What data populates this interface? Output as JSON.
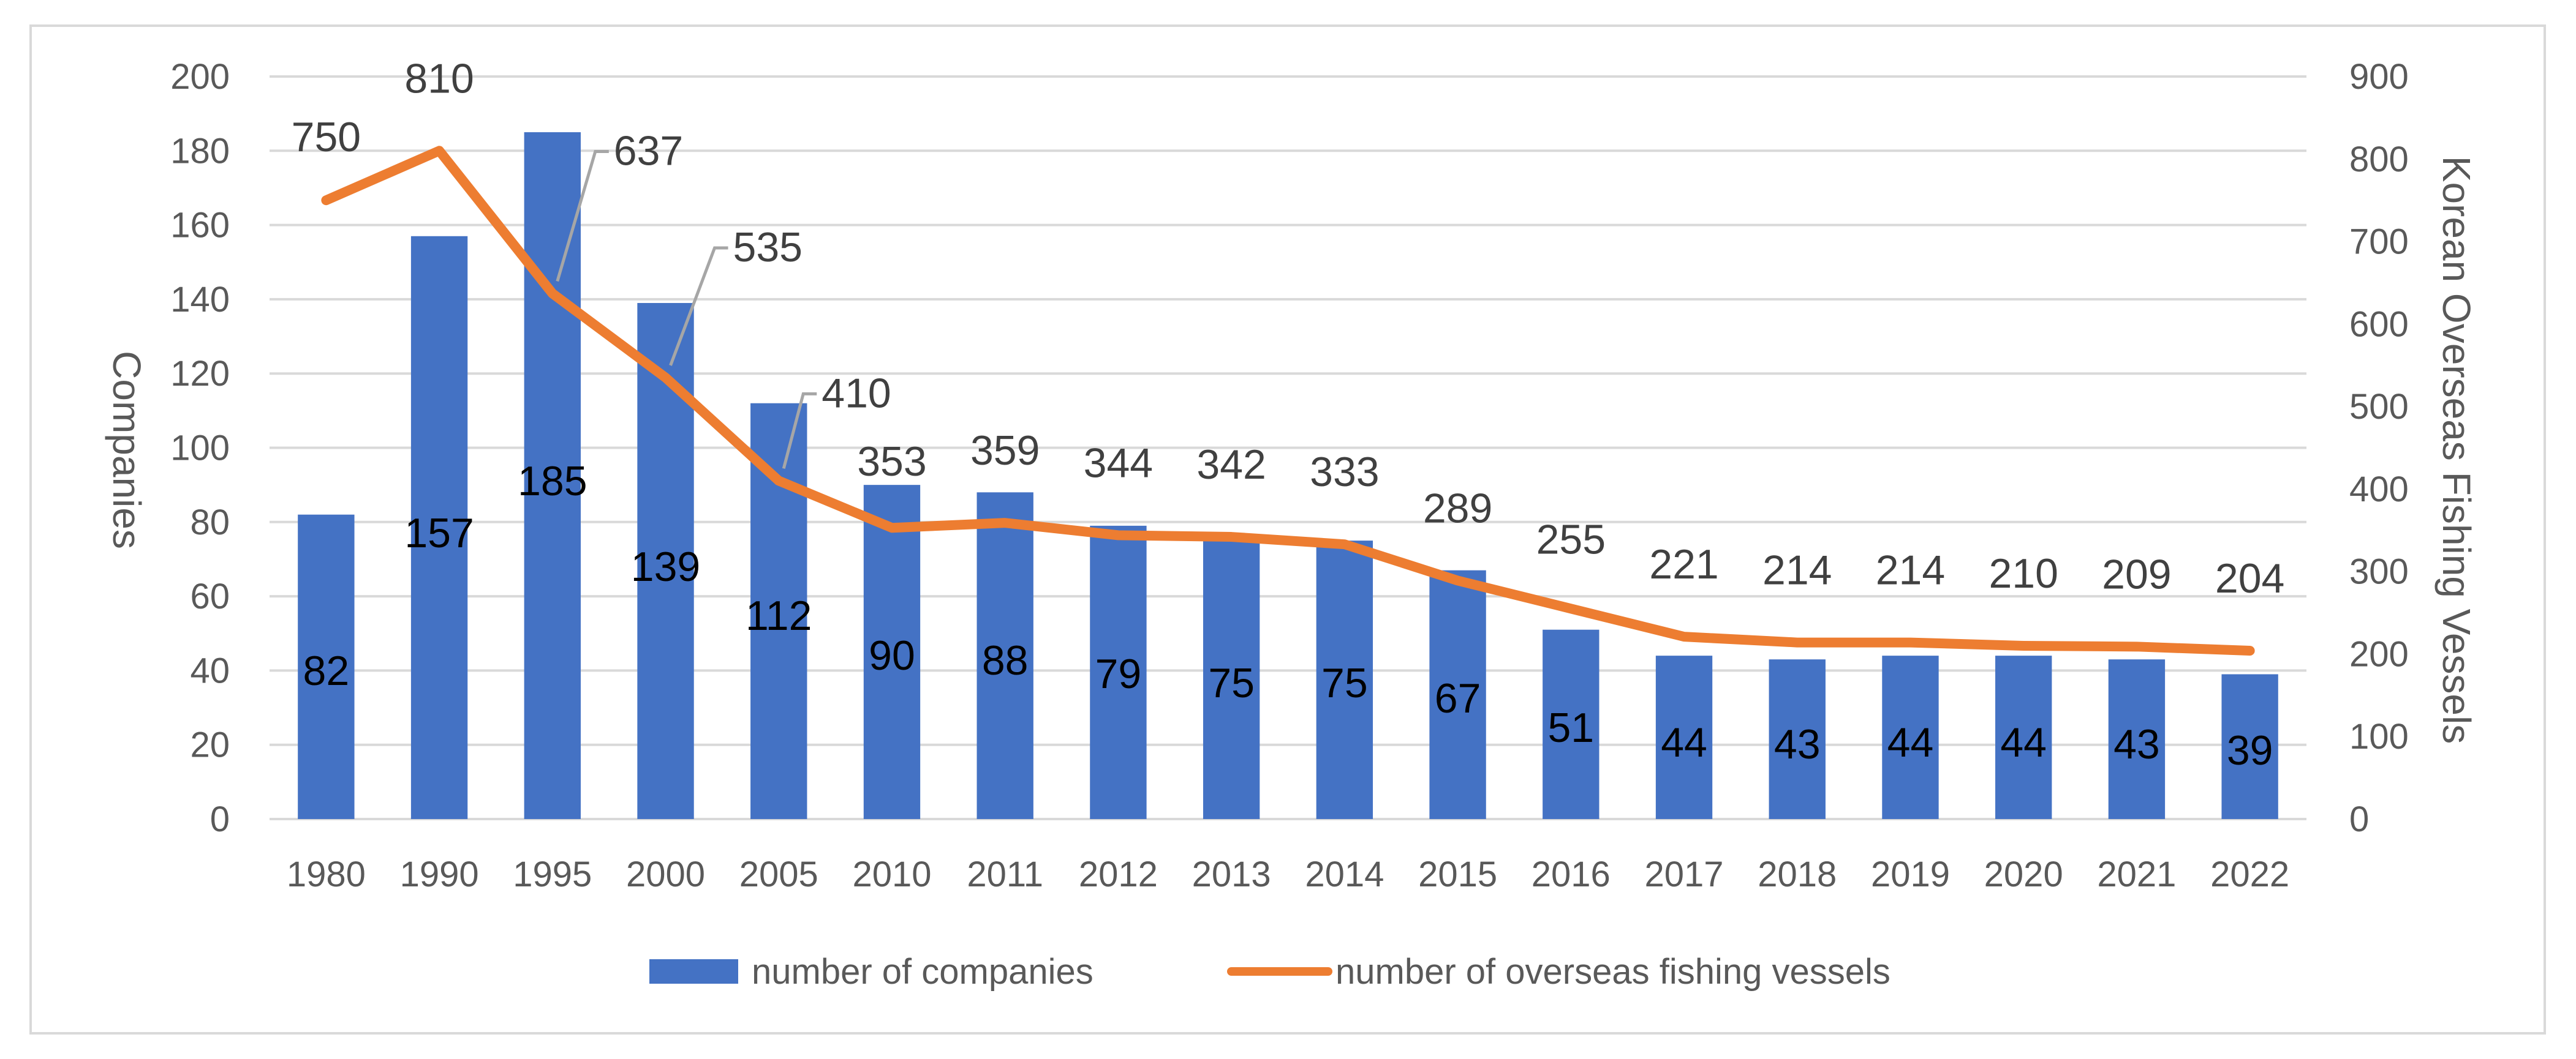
{
  "chart_data": {
    "type": "bar+line",
    "categories": [
      "1980",
      "1990",
      "1995",
      "2000",
      "2005",
      "2010",
      "2011",
      "2012",
      "2013",
      "2014",
      "2015",
      "2016",
      "2017",
      "2018",
      "2019",
      "2020",
      "2021",
      "2022"
    ],
    "series": [
      {
        "name": "number of companies",
        "type": "bar",
        "axis": "left",
        "color": "#4472C4",
        "values": [
          82,
          157,
          185,
          139,
          112,
          90,
          88,
          79,
          75,
          75,
          67,
          51,
          44,
          43,
          44,
          44,
          43,
          39
        ],
        "labels": [
          "82",
          "157",
          "185",
          "139",
          "112",
          "90",
          "88",
          "79",
          "75",
          "75",
          "67",
          "51",
          "44",
          "43",
          "44",
          "44",
          "43",
          "39"
        ]
      },
      {
        "name": "number of overseas fishing vessels",
        "type": "line",
        "axis": "right",
        "color": "#ED7D31",
        "values": [
          750,
          810,
          637,
          535,
          410,
          353,
          359,
          344,
          342,
          333,
          289,
          255,
          221,
          214,
          214,
          210,
          209,
          204
        ],
        "labels": [
          "750",
          "810",
          "637",
          "535",
          "410",
          "353",
          "359",
          "344",
          "342",
          "333",
          "289",
          "255",
          "221",
          "214",
          "214",
          "210",
          "209",
          "204"
        ]
      }
    ],
    "y_left": {
      "label": "Companies",
      "min": 0,
      "max": 200,
      "ticks": [
        "0",
        "20",
        "40",
        "60",
        "80",
        "100",
        "120",
        "140",
        "160",
        "180",
        "200"
      ]
    },
    "y_right": {
      "label": "Korean Overseas Fishing Vessels",
      "min": 0,
      "max": 900,
      "ticks": [
        "0",
        "100",
        "200",
        "300",
        "400",
        "500",
        "600",
        "700",
        "800",
        "900"
      ]
    },
    "grid": true,
    "legend_position": "bottom"
  }
}
